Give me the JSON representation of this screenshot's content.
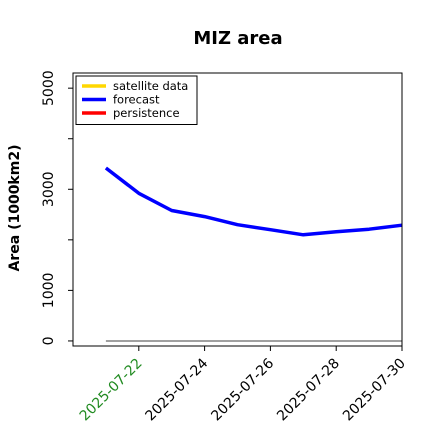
{
  "chart_data": {
    "type": "line",
    "title": "MIZ area",
    "xlabel": "",
    "ylabel": "Area (1000km2)",
    "x_dates": [
      "2025-07-21",
      "2025-07-22",
      "2025-07-23",
      "2025-07-24",
      "2025-07-25",
      "2025-07-26",
      "2025-07-27",
      "2025-07-28",
      "2025-07-29",
      "2025-07-30"
    ],
    "x_ticks": [
      "2025-07-22",
      "2025-07-24",
      "2025-07-26",
      "2025-07-28",
      "2025-07-30"
    ],
    "x_tick_colors": [
      "#228B22",
      "#000000",
      "#000000",
      "#000000",
      "#000000"
    ],
    "xlim": [
      "2025-07-20",
      "2025-07-30"
    ],
    "y_ticks": [
      0,
      1000,
      3000,
      5000
    ],
    "ylim": [
      -100,
      5300
    ],
    "grid": false,
    "legend_position": "top-left",
    "series": [
      {
        "name": "satellite data",
        "color": "#FFD700",
        "values": []
      },
      {
        "name": "forecast",
        "color": "#0000FF",
        "values": [
          3420,
          2920,
          2580,
          2460,
          2300,
          2200,
          2100,
          2160,
          2210,
          2290
        ]
      },
      {
        "name": "persistence",
        "color": "#FF0000",
        "values": []
      }
    ],
    "reference_line": {
      "color": "#808080",
      "y": 0,
      "from": "2025-07-21",
      "to": "2025-07-30"
    }
  }
}
